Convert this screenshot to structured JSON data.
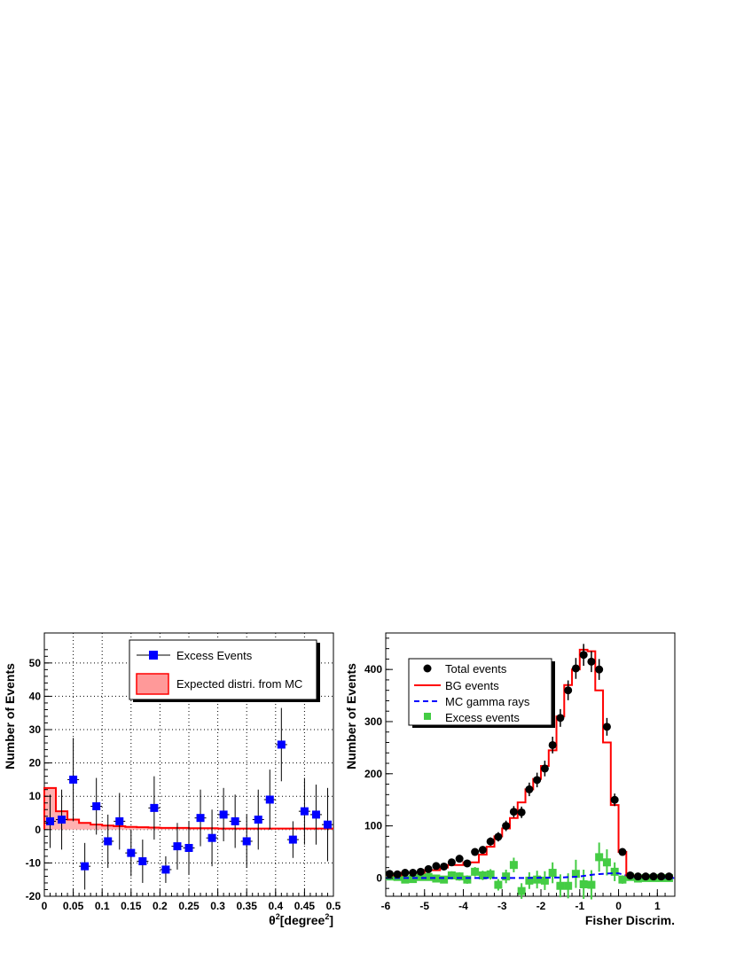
{
  "chart_data": [
    {
      "type": "scatter",
      "title": "",
      "xlabel": "θ",
      "xlabel_sup": "2",
      "xlabel_unit": "[degree",
      "xlabel_unit_sup": "2",
      "xlabel_close": "]",
      "ylabel": "Number of Events",
      "xlim": [
        0,
        0.5
      ],
      "ylim": [
        -20,
        59
      ],
      "grid": true,
      "legend_position": "top-right",
      "x_ticks": [
        "0",
        "0.05",
        "0.1",
        "0.15",
        "0.2",
        "0.25",
        "0.3",
        "0.35",
        "0.4",
        "0.45",
        "0.5"
      ],
      "y_ticks": [
        "-20",
        "-10",
        "0",
        "10",
        "20",
        "30",
        "40",
        "50"
      ],
      "series": [
        {
          "name": "Excess Events",
          "color": "#0000ff",
          "marker": "square",
          "x": [
            0.01,
            0.03,
            0.05,
            0.07,
            0.09,
            0.11,
            0.13,
            0.15,
            0.17,
            0.19,
            0.21,
            0.23,
            0.25,
            0.27,
            0.29,
            0.31,
            0.33,
            0.35,
            0.37,
            0.39,
            0.41,
            0.43,
            0.45,
            0.47,
            0.49
          ],
          "y": [
            2.5,
            3,
            15,
            -11,
            7,
            -3.5,
            2.5,
            -7,
            -9.5,
            6.5,
            -12,
            -5,
            -5.5,
            3.5,
            -2.5,
            4.5,
            2.5,
            -3.5,
            3,
            9,
            25.5,
            -3,
            5.5,
            4.5,
            1.5
          ],
          "yerr": [
            8,
            9,
            12.5,
            7,
            8.5,
            8,
            8.5,
            7,
            6.5,
            9.5,
            4,
            7,
            8,
            8.5,
            8.5,
            8,
            8,
            8,
            9,
            9,
            11,
            5.5,
            10,
            9,
            11
          ]
        },
        {
          "name": "Expected distri. from MC",
          "color": "#ff0000",
          "style": "filled-hist",
          "bin_edges": [
            0,
            0.02,
            0.04,
            0.06,
            0.08,
            0.1,
            0.12,
            0.14,
            0.16,
            0.18,
            0.2,
            0.25,
            0.3,
            0.35,
            0.4,
            0.45,
            0.5
          ],
          "values": [
            12.5,
            5.5,
            3,
            2,
            1.5,
            1.2,
            1,
            0.8,
            0.7,
            0.6,
            0.5,
            0.4,
            0.3,
            0.3,
            0.3,
            0.3
          ]
        }
      ]
    },
    {
      "type": "line",
      "title": "",
      "xlabel": "Fisher Discrim.",
      "ylabel": "Number of Events",
      "xlim": [
        -6,
        1.45
      ],
      "ylim": [
        -35,
        470
      ],
      "grid": false,
      "legend_position": "top-left",
      "x_ticks": [
        "-6",
        "-5",
        "-4",
        "-3",
        "-2",
        "-1",
        "0",
        "1"
      ],
      "y_ticks": [
        "0",
        "100",
        "200",
        "300",
        "400"
      ],
      "bin_width": 0.2,
      "bin_start": -6,
      "series": [
        {
          "name": "Total events",
          "color": "#000000",
          "marker": "circle",
          "x": [
            -5.9,
            -5.7,
            -5.5,
            -5.3,
            -5.1,
            -4.9,
            -4.7,
            -4.5,
            -4.3,
            -4.1,
            -3.9,
            -3.7,
            -3.5,
            -3.3,
            -3.1,
            -2.9,
            -2.7,
            -2.5,
            -2.3,
            -2.1,
            -1.9,
            -1.7,
            -1.5,
            -1.3,
            -1.1,
            -0.9,
            -0.7,
            -0.5,
            -0.3,
            -0.1,
            0.1,
            0.3,
            0.5,
            0.7,
            0.9,
            1.1,
            1.3
          ],
          "y": [
            8,
            7,
            10,
            10,
            12,
            17,
            23,
            22,
            30,
            37,
            28,
            50,
            54,
            70,
            79,
            100,
            127,
            126,
            170,
            188,
            210,
            255,
            307,
            360,
            402,
            428,
            415,
            400,
            290,
            150,
            50,
            5,
            3,
            3,
            3,
            3,
            3
          ],
          "yerr": [
            3,
            3,
            3,
            3,
            4,
            4,
            5,
            5,
            6,
            6,
            6,
            7,
            7,
            8,
            9,
            10,
            11,
            11,
            13,
            14,
            15,
            16,
            17,
            19,
            20,
            21,
            20,
            20,
            17,
            12,
            7,
            2,
            2,
            2,
            2,
            2,
            2
          ]
        },
        {
          "name": "BG events",
          "color": "#ff0000",
          "style": "step",
          "values": [
            5,
            5,
            10,
            10,
            10,
            15,
            15,
            20,
            25,
            25,
            30,
            30,
            45,
            60,
            80,
            95,
            115,
            145,
            170,
            190,
            215,
            245,
            310,
            370,
            400,
            438,
            435,
            360,
            260,
            140,
            50,
            5,
            3,
            3,
            3,
            3,
            3
          ]
        },
        {
          "name": "MC gamma rays",
          "color": "#0000ff",
          "style": "dashed",
          "x": [
            -6,
            -5,
            -4,
            -3,
            -2.5,
            -2,
            -1.5,
            -1.2,
            -1,
            -0.8,
            -0.6,
            -0.4,
            -0.2,
            0,
            0.2,
            0.4,
            0.6,
            1,
            1.45
          ],
          "y": [
            0,
            0,
            0,
            0,
            0,
            0.5,
            1,
            2,
            3,
            5,
            7,
            8,
            9,
            9,
            5,
            2,
            0.5,
            0,
            0
          ]
        },
        {
          "name": "Excess events",
          "color": "#44cc44",
          "marker": "square",
          "x": [
            -5.9,
            -5.7,
            -5.5,
            -5.3,
            -5.1,
            -4.9,
            -4.7,
            -4.5,
            -4.3,
            -4.1,
            -3.9,
            -3.7,
            -3.5,
            -3.3,
            -3.1,
            -2.9,
            -2.7,
            -2.5,
            -2.3,
            -2.1,
            -1.9,
            -1.7,
            -1.5,
            -1.3,
            -1.1,
            -0.9,
            -0.7,
            -0.5,
            -0.3,
            -0.1,
            0.1,
            0.3,
            0.5,
            0.7,
            0.9,
            1.1,
            1.3
          ],
          "y": [
            3,
            2,
            -3,
            -2,
            2,
            2,
            -1,
            -3,
            5,
            3,
            -3,
            12,
            5,
            7,
            -13,
            3,
            25,
            -25,
            -5,
            -3,
            -5,
            10,
            -15,
            -15,
            8,
            -12,
            -13,
            40,
            30,
            12,
            -3,
            2,
            -1,
            0,
            0,
            0,
            0
          ],
          "yerr": [
            4,
            4,
            5,
            5,
            5,
            6,
            7,
            7,
            8,
            8,
            8,
            9,
            9,
            10,
            11,
            13,
            14,
            15,
            16,
            17,
            18,
            20,
            22,
            24,
            27,
            28,
            28,
            28,
            25,
            18,
            8,
            3,
            2,
            2,
            2,
            2,
            2
          ]
        }
      ]
    }
  ]
}
